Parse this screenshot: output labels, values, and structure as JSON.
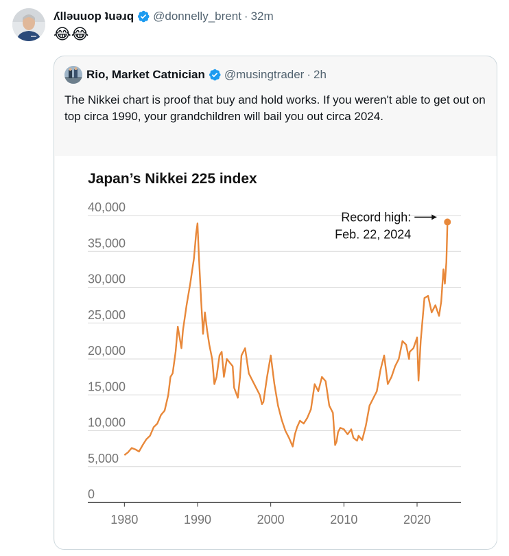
{
  "tweet": {
    "display_name": "ʎllǝuuop ʇuǝɹq",
    "handle": "@donnelly_brent",
    "separator": "·",
    "time": "32m",
    "emojis": "😂😂"
  },
  "quoted": {
    "display_name": "Rio, Market Catnician",
    "handle": "@musingtrader",
    "separator": "·",
    "time": "2h",
    "text": "The Nikkei chart is proof that buy and hold works. If you weren't able to get out on top circa 1990, your grandchildren will bail you out circa 2024."
  },
  "colors": {
    "verified": "#1d9bf0",
    "line": "#e8883a",
    "grid": "#d9d9d9",
    "tick_text": "#757575"
  },
  "chart_data": {
    "type": "line",
    "title": "Japan’s Nikkei 225 index",
    "xlabel": "",
    "ylabel": "",
    "xlim": [
      1975,
      2026
    ],
    "ylim": [
      0,
      40000
    ],
    "x_ticks": [
      "1980",
      "1990",
      "2000",
      "2010",
      "2020"
    ],
    "y_ticks": [
      "0",
      "5,000",
      "10,000",
      "15,000",
      "20,000",
      "25,000",
      "30,000",
      "35,000",
      "40,000"
    ],
    "annotation": {
      "line1": "Record high:",
      "line2": "Feb. 22, 2024",
      "x": 2024.15,
      "y": 39100
    },
    "grid": true,
    "series": [
      {
        "x": [
          1980,
          1980.5,
          1981,
          1981.5,
          1982,
          1982.5,
          1983,
          1983.5,
          1984,
          1984.5,
          1985,
          1985.5,
          1986,
          1986.3,
          1986.6,
          1987,
          1987.3,
          1987.8,
          1988,
          1988.5,
          1989,
          1989.5,
          1989.8,
          1989.99,
          1990.2,
          1990.5,
          1990.75,
          1991,
          1991.3,
          1991.6,
          1992,
          1992.3,
          1992.6,
          1993,
          1993.3,
          1993.6,
          1994,
          1994.4,
          1994.8,
          1995,
          1995.5,
          1995.8,
          1996,
          1996.5,
          1997,
          1997.5,
          1998,
          1998.5,
          1998.8,
          1999,
          1999.5,
          2000,
          2000.5,
          2001,
          2001.5,
          2002,
          2002.5,
          2003,
          2003.3,
          2003.6,
          2004,
          2004.5,
          2005,
          2005.5,
          2006,
          2006.5,
          2007,
          2007.5,
          2008,
          2008.5,
          2008.8,
          2009,
          2009.2,
          2009.5,
          2010,
          2010.5,
          2011,
          2011.3,
          2011.8,
          2012,
          2012.5,
          2013,
          2013.5,
          2014,
          2014.5,
          2015,
          2015.5,
          2016,
          2016.5,
          2017,
          2017.5,
          2018,
          2018.5,
          2018.9,
          2019,
          2019.5,
          2020,
          2020.2,
          2020.5,
          2021,
          2021.5,
          2022,
          2022.5,
          2023,
          2023.3,
          2023.6,
          2023.8,
          2024,
          2024.15
        ],
        "y": [
          6600,
          7000,
          7600,
          7400,
          7100,
          8000,
          8800,
          9300,
          10500,
          11000,
          12200,
          12800,
          15000,
          17500,
          18000,
          21000,
          24500,
          21500,
          24000,
          27500,
          30500,
          34000,
          37500,
          38900,
          34000,
          28000,
          23500,
          26500,
          24000,
          22000,
          20000,
          16500,
          17500,
          20500,
          21000,
          17500,
          20000,
          19500,
          19000,
          16000,
          14600,
          17500,
          20500,
          21500,
          18000,
          17000,
          16000,
          15000,
          13700,
          14000,
          17500,
          20500,
          16500,
          13500,
          11500,
          10000,
          9000,
          7800,
          9500,
          10500,
          11400,
          11000,
          11800,
          13000,
          16500,
          15500,
          17500,
          16900,
          13500,
          12500,
          8000,
          8500,
          9800,
          10400,
          10200,
          9500,
          10200,
          9000,
          8600,
          9300,
          8700,
          10700,
          13500,
          14500,
          15500,
          18500,
          20500,
          16500,
          17500,
          19000,
          20000,
          22500,
          22000,
          20000,
          21000,
          21500,
          23000,
          17000,
          22500,
          28500,
          28800,
          26500,
          27500,
          26000,
          28000,
          32500,
          30500,
          33500,
          39100
        ]
      }
    ]
  }
}
